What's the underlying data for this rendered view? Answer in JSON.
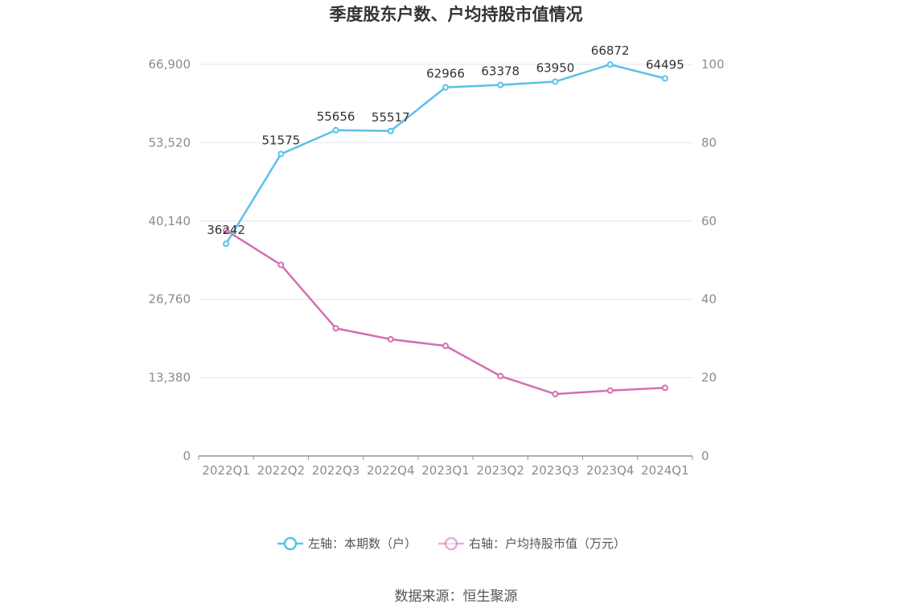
{
  "chart_data": {
    "type": "line",
    "title": "季度股东户数、户均持股市值情况",
    "categories": [
      "2022Q1",
      "2022Q2",
      "2022Q3",
      "2022Q4",
      "2023Q1",
      "2023Q2",
      "2023Q3",
      "2023Q4",
      "2024Q1"
    ],
    "left_axis": {
      "ticks": [
        "0",
        "13,380",
        "26,760",
        "40,140",
        "53,520",
        "66,900"
      ],
      "ylim": [
        0,
        66900
      ]
    },
    "right_axis": {
      "ticks": [
        "0",
        "20",
        "40",
        "60",
        "80",
        "100"
      ],
      "ylim": [
        0,
        100
      ]
    },
    "grid": true,
    "legend_position": "bottom",
    "series": [
      {
        "name": "左轴：本期数（户）",
        "axis": "left",
        "color": "#5bc0eb",
        "values": [
          36242,
          51575,
          55656,
          55517,
          62966,
          63378,
          63950,
          66872,
          64495
        ],
        "labels": [
          "36242",
          "51575",
          "55656",
          "55517",
          "62966",
          "63378",
          "63950",
          "66872",
          "64495"
        ]
      },
      {
        "name": "右轴：户均持股市值（万元）",
        "axis": "right",
        "color": "#d36fb2",
        "values": [
          57.6,
          48.8,
          32.6,
          29.8,
          28.1,
          20.4,
          15.8,
          16.7,
          17.4
        ]
      }
    ],
    "source": "数据来源：恒生聚源"
  }
}
